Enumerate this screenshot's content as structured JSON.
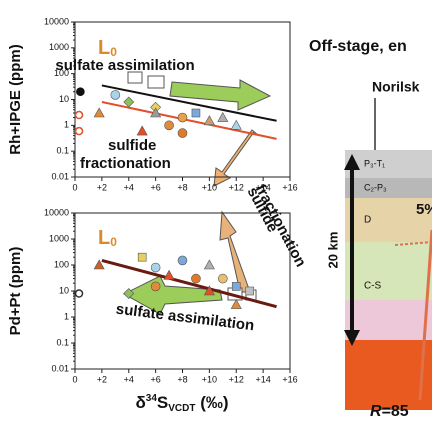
{
  "chart_data": [
    {
      "type": "scatter",
      "y_label": "Rh+IPGE (ppm)",
      "log_y": true,
      "ylim": [
        0.01,
        10000
      ],
      "yticks": [
        0.01,
        0.1,
        1,
        10,
        100,
        1000,
        10000
      ],
      "xlim": [
        0,
        16
      ],
      "xticks": [
        0,
        {
          "value": 2,
          "label": "+2"
        },
        {
          "value": 4,
          "label": "+4"
        },
        {
          "value": 6,
          "label": "+6"
        },
        {
          "value": 8,
          "label": "+8"
        },
        {
          "value": 10,
          "label": "+10"
        },
        {
          "value": 12,
          "label": "+12"
        },
        {
          "value": 14,
          "label": "+14"
        },
        {
          "value": 16,
          "label": "+16"
        }
      ],
      "marker_label": {
        "main": "L",
        "sub": "0"
      },
      "annotations": [
        "sulfate assimilation",
        "sulfide",
        "fractionation"
      ],
      "x": [
        0.4,
        0.3,
        0.3,
        1.8,
        3,
        4,
        5,
        6,
        6,
        7,
        8,
        8,
        9,
        10,
        11,
        12
      ],
      "values": [
        20,
        2.5,
        0.6,
        3,
        15,
        8,
        0.6,
        5,
        3,
        1,
        0.5,
        2,
        3,
        1.5,
        2,
        1
      ],
      "markers": [
        "dot",
        "ring",
        "ring",
        "triangle",
        "circle",
        "diamond",
        "triangle",
        "diamond",
        "triangle",
        "circle",
        "circle",
        "circle",
        "square",
        "triangle",
        "triangle",
        "triangle"
      ],
      "colors": [
        "#111111",
        "#e0502a",
        "#e0502a",
        "#e08a3c",
        "#a9d3e8",
        "#8fbf5a",
        "#e0502a",
        "#e8d060",
        "#9a9a9a",
        "#e08a3c",
        "#e07a2a",
        "#e8a04a",
        "#7aa8d8",
        "#c8a070",
        "#b0b0b0",
        "#a9d3e8"
      ],
      "lines": [
        {
          "color": "#111111",
          "x": [
            2,
            15
          ],
          "values": [
            35,
            1.5
          ]
        },
        {
          "color": "#e0502a",
          "x": [
            2,
            15
          ],
          "values": [
            8,
            0.3
          ]
        }
      ]
    },
    {
      "type": "scatter",
      "y_label": "Pd+Pt (ppm)",
      "log_y": true,
      "ylim": [
        0.01,
        10000
      ],
      "yticks": [
        0.01,
        0.1,
        1,
        10,
        100,
        1000,
        10000
      ],
      "xlim": [
        0,
        16
      ],
      "xticks": [
        0,
        {
          "value": 2,
          "label": "+2"
        },
        {
          "value": 4,
          "label": "+4"
        },
        {
          "value": 6,
          "label": "+6"
        },
        {
          "value": 8,
          "label": "+8"
        },
        {
          "value": 10,
          "label": "+10"
        },
        {
          "value": 12,
          "label": "+12"
        },
        {
          "value": 14,
          "label": "+14"
        },
        {
          "value": 16,
          "label": "+16"
        }
      ],
      "x_label": {
        "prefix": "δ",
        "sup": "34",
        "main": "S",
        "sub": "VCDT",
        "suffix": " (‰)"
      },
      "marker_label": {
        "main": "L",
        "sub": "0"
      },
      "annotations": [
        "sulfide",
        "fractionation",
        "sulfate assimilation"
      ],
      "x": [
        0.3,
        1.8,
        4,
        5,
        6,
        6,
        7,
        8,
        9,
        10,
        10,
        11,
        12,
        12,
        13
      ],
      "values": [
        8,
        100,
        8,
        200,
        80,
        15,
        40,
        150,
        30,
        10,
        100,
        30,
        15,
        3,
        10
      ],
      "markers": [
        "ring",
        "triangle",
        "diamond",
        "square",
        "circle",
        "circle",
        "triangle",
        "circle",
        "circle",
        "triangle",
        "triangle",
        "circle",
        "square",
        "triangle",
        "square"
      ],
      "colors": [
        "#333333",
        "#c8602a",
        "#8fbf5a",
        "#e8d060",
        "#a9d3e8",
        "#e08a3c",
        "#e0502a",
        "#7aa8d8",
        "#e07a2a",
        "#e0502a",
        "#b0b0b0",
        "#e8c070",
        "#7aa8d8",
        "#e08a3c",
        "#c0c0c0"
      ],
      "lines": [
        {
          "color": "#6a1a10",
          "x": [
            2,
            15
          ],
          "values": [
            150,
            2.5
          ]
        }
      ]
    }
  ],
  "diagram": {
    "title": "Off-stage, en",
    "location": "Norilsk",
    "layers": [
      "P₃-T₁",
      "C₂-P₃",
      "D",
      "C-S"
    ],
    "percent": "5%",
    "depth": "20 km",
    "ratio": {
      "symbol": "R",
      "text": "=85"
    }
  }
}
